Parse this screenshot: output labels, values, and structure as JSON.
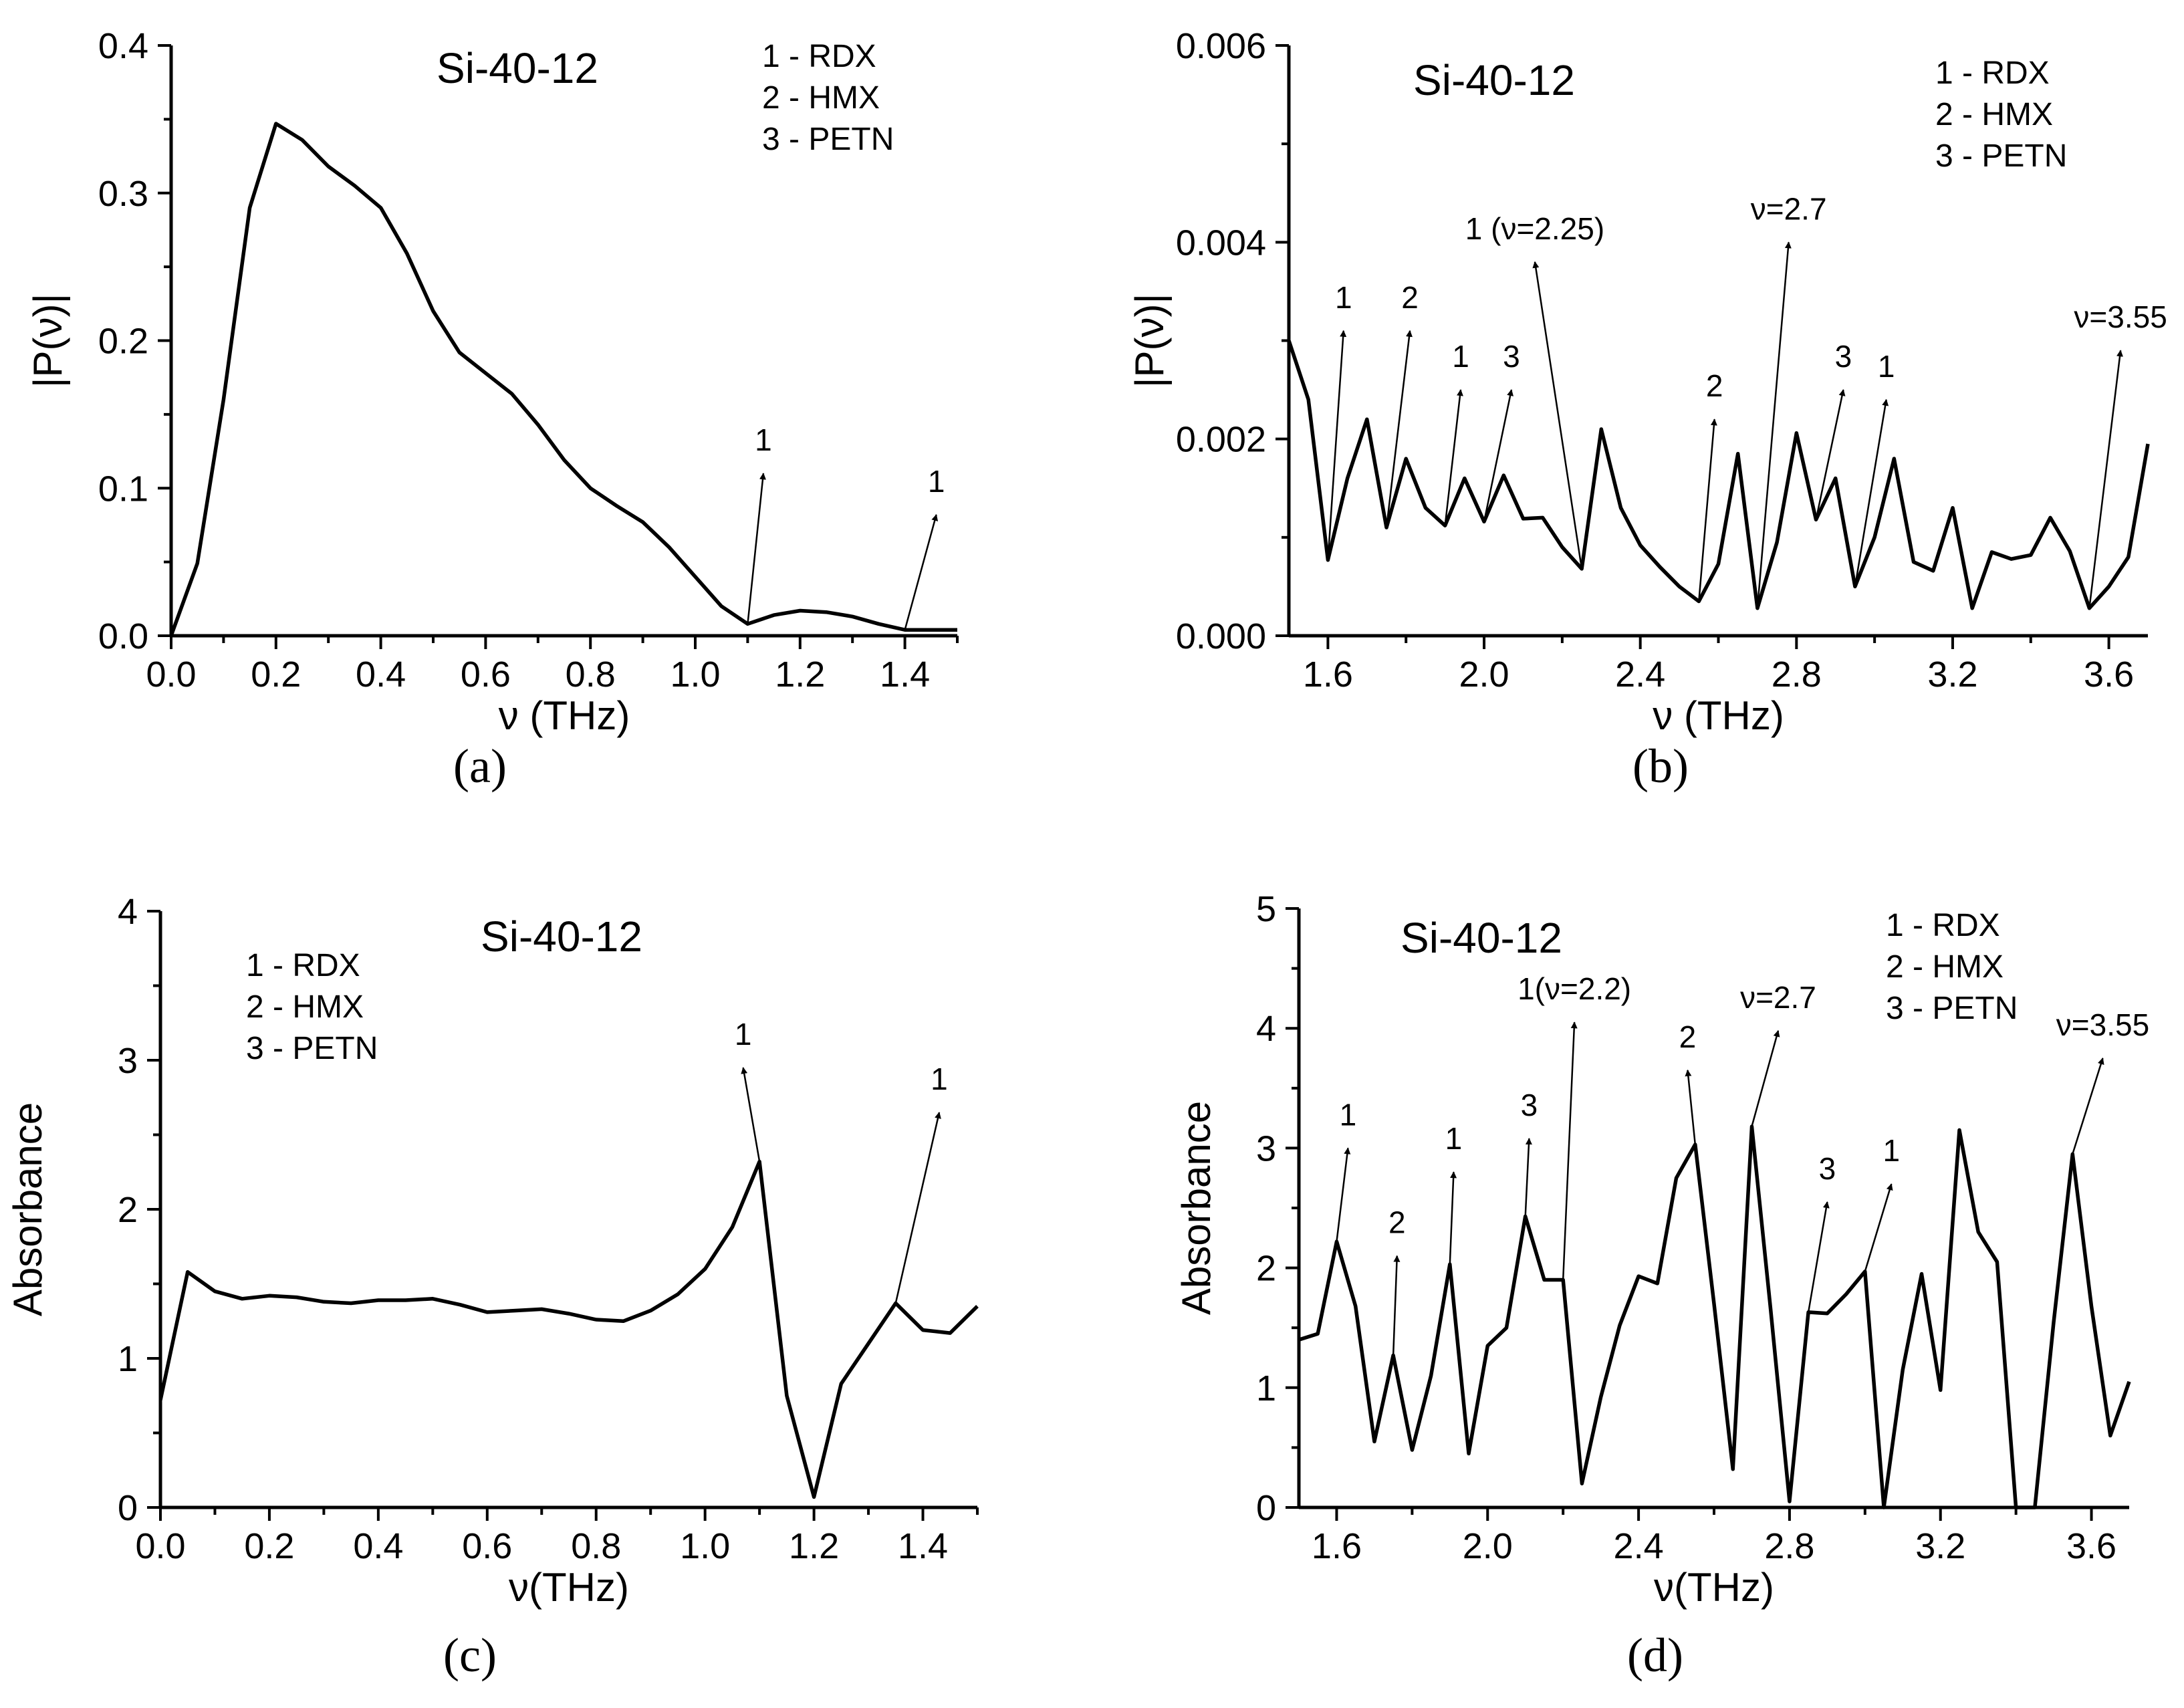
{
  "chart_data": [
    {
      "id": "a",
      "type": "line",
      "panel_label": "(a)",
      "title": "Si-40-12",
      "xlabel": "ν (THz)",
      "ylabel": "|P(ν)|",
      "xlim": [
        0.0,
        1.5
      ],
      "ylim": [
        0.0,
        0.4
      ],
      "xticks": [
        0.0,
        0.2,
        0.4,
        0.6,
        0.8,
        1.0,
        1.2,
        1.4
      ],
      "xtick_labels": [
        "0.0",
        "0.2",
        "0.4",
        "0.6",
        "0.8",
        "1.0",
        "1.2",
        "1.4"
      ],
      "yticks": [
        0.0,
        0.1,
        0.2,
        0.3,
        0.4
      ],
      "ytick_labels": [
        "0.0",
        "0.1",
        "0.2",
        "0.3",
        "0.4"
      ],
      "legend": [
        "1 - RDX",
        "2 - HMX",
        "3 - PETN"
      ],
      "x": [
        0.0,
        0.05,
        0.1,
        0.15,
        0.2,
        0.25,
        0.3,
        0.35,
        0.4,
        0.45,
        0.5,
        0.55,
        0.6,
        0.65,
        0.7,
        0.75,
        0.8,
        0.85,
        0.9,
        0.95,
        1.0,
        1.05,
        1.1,
        1.15,
        1.2,
        1.25,
        1.3,
        1.35,
        1.4,
        1.45,
        1.5
      ],
      "y": [
        0.0,
        0.049,
        0.16,
        0.29,
        0.347,
        0.336,
        0.318,
        0.305,
        0.29,
        0.259,
        0.22,
        0.192,
        0.178,
        0.164,
        0.143,
        0.119,
        0.1,
        0.088,
        0.077,
        0.06,
        0.04,
        0.02,
        0.008,
        0.014,
        0.017,
        0.016,
        0.013,
        0.008,
        0.004,
        0.004,
        0.004
      ],
      "annotations": [
        {
          "text": "1",
          "from": [
            1.1,
            0.008
          ],
          "to": [
            1.13,
            0.11
          ]
        },
        {
          "text": "1",
          "from": [
            1.4,
            0.004
          ],
          "to": [
            1.46,
            0.082
          ]
        }
      ]
    },
    {
      "id": "b",
      "type": "line",
      "panel_label": "(b)",
      "title": "Si-40-12",
      "xlabel": "ν (THz)",
      "ylabel": "|P(ν)|",
      "xlim": [
        1.5,
        3.7
      ],
      "ylim": [
        0.0,
        0.006
      ],
      "xticks": [
        1.6,
        2.0,
        2.4,
        2.8,
        3.2,
        3.6
      ],
      "xtick_labels": [
        "1.6",
        "2.0",
        "2.4",
        "2.8",
        "3.2",
        "3.6"
      ],
      "yticks": [
        0.0,
        0.002,
        0.004,
        0.006
      ],
      "ytick_labels": [
        "0.000",
        "0.002",
        "0.004",
        "0.006"
      ],
      "legend": [
        "1 - RDX",
        "2 - HMX",
        "3 - PETN"
      ],
      "x": [
        1.5,
        1.55,
        1.6,
        1.65,
        1.7,
        1.75,
        1.8,
        1.85,
        1.9,
        1.95,
        2.0,
        2.05,
        2.1,
        2.15,
        2.2,
        2.25,
        2.3,
        2.35,
        2.4,
        2.45,
        2.5,
        2.55,
        2.6,
        2.65,
        2.7,
        2.75,
        2.8,
        2.85,
        2.9,
        2.95,
        3.0,
        3.05,
        3.1,
        3.15,
        3.2,
        3.25,
        3.3,
        3.35,
        3.4,
        3.45,
        3.5,
        3.55,
        3.6,
        3.65,
        3.7
      ],
      "y": [
        0.003,
        0.0024,
        0.00077,
        0.0016,
        0.0022,
        0.0011,
        0.0018,
        0.0013,
        0.00112,
        0.0016,
        0.00116,
        0.00163,
        0.00119,
        0.0012,
        0.0009,
        0.00068,
        0.0021,
        0.0013,
        0.00092,
        0.0007,
        0.0005,
        0.00035,
        0.00073,
        0.00185,
        0.00028,
        0.00095,
        0.00206,
        0.00118,
        0.0016,
        0.0005,
        0.001,
        0.0018,
        0.00075,
        0.00066,
        0.0013,
        0.00028,
        0.00085,
        0.00078,
        0.00082,
        0.0012,
        0.00086,
        0.00028,
        0.0005,
        0.0008,
        0.00195
      ],
      "annotations": [
        {
          "text": "1",
          "from": [
            1.6,
            0.00077
          ],
          "to": [
            1.64,
            0.0031
          ]
        },
        {
          "text": "2",
          "from": [
            1.75,
            0.0011
          ],
          "to": [
            1.81,
            0.0031
          ]
        },
        {
          "text": "1",
          "from": [
            1.9,
            0.00112
          ],
          "to": [
            1.94,
            0.0025
          ]
        },
        {
          "text": "3",
          "from": [
            2.0,
            0.00116
          ],
          "to": [
            2.07,
            0.0025
          ]
        },
        {
          "text": "1 (ν=2.25)",
          "from": [
            2.25,
            0.00068
          ],
          "to": [
            2.13,
            0.0038
          ]
        },
        {
          "text": "2",
          "from": [
            2.55,
            0.00035
          ],
          "to": [
            2.59,
            0.0022
          ]
        },
        {
          "text": "ν=2.7",
          "from": [
            2.7,
            0.00028
          ],
          "to": [
            2.78,
            0.004
          ]
        },
        {
          "text": "3",
          "from": [
            2.85,
            0.00118
          ],
          "to": [
            2.92,
            0.0025
          ]
        },
        {
          "text": "1",
          "from": [
            2.95,
            0.0005
          ],
          "to": [
            3.03,
            0.0024
          ]
        },
        {
          "text": "ν=3.55",
          "from": [
            3.55,
            0.00028
          ],
          "to": [
            3.63,
            0.0029
          ]
        }
      ]
    },
    {
      "id": "c",
      "type": "line",
      "panel_label": "(c)",
      "title": "Si-40-12",
      "xlabel": "ν(THz)",
      "ylabel": "Absorbance",
      "xlim": [
        0.0,
        1.5
      ],
      "ylim": [
        0,
        4
      ],
      "xticks": [
        0.0,
        0.2,
        0.4,
        0.6,
        0.8,
        1.0,
        1.2,
        1.4
      ],
      "xtick_labels": [
        "0.0",
        "0.2",
        "0.4",
        "0.6",
        "0.8",
        "1.0",
        "1.2",
        "1.4"
      ],
      "yticks": [
        0,
        1,
        2,
        3,
        4
      ],
      "ytick_labels": [
        "0",
        "1",
        "2",
        "3",
        "4"
      ],
      "legend": [
        "1 - RDX",
        "2 - HMX",
        "3 - PETN"
      ],
      "x": [
        0.0,
        0.05,
        0.1,
        0.15,
        0.2,
        0.25,
        0.3,
        0.35,
        0.4,
        0.45,
        0.5,
        0.55,
        0.6,
        0.65,
        0.7,
        0.75,
        0.8,
        0.85,
        0.9,
        0.95,
        1.0,
        1.05,
        1.1,
        1.15,
        1.2,
        1.25,
        1.3,
        1.35,
        1.4,
        1.45,
        1.5
      ],
      "y": [
        0.72,
        1.58,
        1.45,
        1.4,
        1.42,
        1.41,
        1.38,
        1.37,
        1.39,
        1.39,
        1.4,
        1.36,
        1.31,
        1.32,
        1.33,
        1.3,
        1.26,
        1.25,
        1.32,
        1.43,
        1.6,
        1.88,
        2.32,
        0.75,
        0.07,
        0.83,
        1.1,
        1.37,
        1.19,
        1.17,
        1.35
      ],
      "annotations": [
        {
          "text": "1",
          "from": [
            1.1,
            2.32
          ],
          "to": [
            1.07,
            2.95
          ]
        },
        {
          "text": "1",
          "from": [
            1.35,
            1.37
          ],
          "to": [
            1.43,
            2.65
          ]
        }
      ]
    },
    {
      "id": "d",
      "type": "line",
      "panel_label": "(d)",
      "title": "Si-40-12",
      "xlabel": "ν(THz)",
      "ylabel": "Absorbance",
      "xlim": [
        1.5,
        3.7
      ],
      "ylim": [
        0,
        5
      ],
      "xticks": [
        1.6,
        2.0,
        2.4,
        2.8,
        3.2,
        3.6
      ],
      "xtick_labels": [
        "1.6",
        "2.0",
        "2.4",
        "2.8",
        "3.2",
        "3.6"
      ],
      "yticks": [
        0,
        1,
        2,
        3,
        4,
        5
      ],
      "ytick_labels": [
        "0",
        "1",
        "2",
        "3",
        "4",
        "5"
      ],
      "legend": [
        "1 - RDX",
        "2 - HMX",
        "3 - PETN"
      ],
      "x": [
        1.5,
        1.55,
        1.6,
        1.65,
        1.7,
        1.75,
        1.8,
        1.85,
        1.9,
        1.95,
        2.0,
        2.05,
        2.1,
        2.15,
        2.2,
        2.25,
        2.3,
        2.35,
        2.4,
        2.45,
        2.5,
        2.55,
        2.6,
        2.65,
        2.7,
        2.75,
        2.8,
        2.85,
        2.9,
        2.95,
        3.0,
        3.05,
        3.1,
        3.15,
        3.2,
        3.25,
        3.3,
        3.35,
        3.4,
        3.45,
        3.5,
        3.55,
        3.6,
        3.65,
        3.7
      ],
      "y": [
        1.4,
        1.45,
        2.22,
        1.68,
        0.55,
        1.27,
        0.48,
        1.1,
        2.03,
        0.45,
        1.35,
        1.5,
        2.43,
        1.9,
        1.9,
        0.2,
        0.92,
        1.52,
        1.93,
        1.87,
        2.75,
        3.03,
        1.7,
        0.32,
        3.18,
        1.65,
        0.05,
        1.63,
        1.62,
        1.78,
        1.97,
        0.0,
        1.15,
        1.95,
        0.98,
        3.15,
        2.3,
        2.05,
        0.0,
        0.0,
        1.55,
        2.95,
        1.68,
        0.6,
        1.05
      ],
      "annotations": [
        {
          "text": "1",
          "from": [
            1.6,
            2.22
          ],
          "to": [
            1.63,
            3.0
          ]
        },
        {
          "text": "2",
          "from": [
            1.75,
            1.27
          ],
          "to": [
            1.76,
            2.1
          ]
        },
        {
          "text": "1",
          "from": [
            1.9,
            2.03
          ],
          "to": [
            1.91,
            2.8
          ]
        },
        {
          "text": "3",
          "from": [
            2.1,
            2.43
          ],
          "to": [
            2.11,
            3.08
          ]
        },
        {
          "text": "1(ν=2.2)",
          "from": [
            2.2,
            1.9
          ],
          "to": [
            2.23,
            4.05
          ]
        },
        {
          "text": "2",
          "from": [
            2.55,
            3.03
          ],
          "to": [
            2.53,
            3.65
          ]
        },
        {
          "text": "ν=2.7",
          "from": [
            2.7,
            3.18
          ],
          "to": [
            2.77,
            3.98
          ]
        },
        {
          "text": "3",
          "from": [
            2.85,
            1.63
          ],
          "to": [
            2.9,
            2.55
          ]
        },
        {
          "text": "1",
          "from": [
            3.0,
            1.97
          ],
          "to": [
            3.07,
            2.7
          ]
        },
        {
          "text": "ν=3.55",
          "from": [
            3.55,
            2.95
          ],
          "to": [
            3.63,
            3.75
          ]
        }
      ]
    }
  ]
}
